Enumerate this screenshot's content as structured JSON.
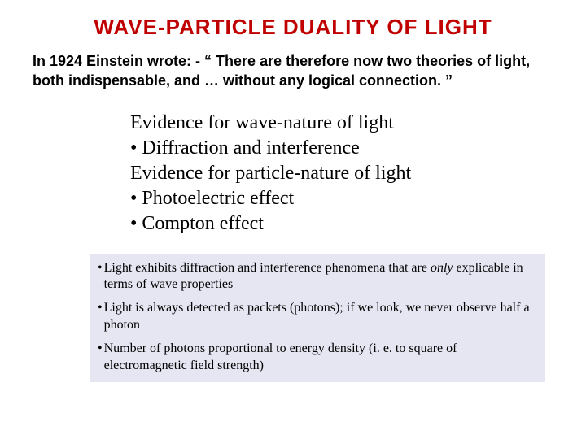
{
  "title": {
    "text": "WAVE-PARTICLE  DUALITY  OF  LIGHT",
    "color": "#c00000",
    "fontsize": 26,
    "font_family": "Arial, Helvetica, sans-serif",
    "font_weight": "bold"
  },
  "intro": {
    "text": "In 1924 Einstein wrote: -   “ There are therefore now two theories of light, both indispensable, and … without any logical connection. ”",
    "color": "#000000",
    "fontsize": 18
  },
  "evidence": {
    "fontsize": 24,
    "color": "#000000",
    "lines": [
      "Evidence for wave-nature of light",
      "• Diffraction and interference",
      "Evidence for particle-nature of light",
      "• Photoelectric effect",
      "• Compton effect"
    ]
  },
  "notes": {
    "background_color": "#e6e6f2",
    "fontsize": 16,
    "bullet": "•",
    "items": [
      {
        "pre": "Light exhibits diffraction and interference phenomena that are ",
        "italic": "only",
        "post": " explicable in terms of wave properties"
      },
      {
        "pre": "Light is always detected as packets (photons); if we look, we never observe half a photon",
        "italic": "",
        "post": ""
      },
      {
        "pre": "Number of photons proportional to energy density (i. e. to square of electromagnetic field strength)",
        "italic": "",
        "post": ""
      }
    ]
  },
  "background_color": "#ffffff"
}
